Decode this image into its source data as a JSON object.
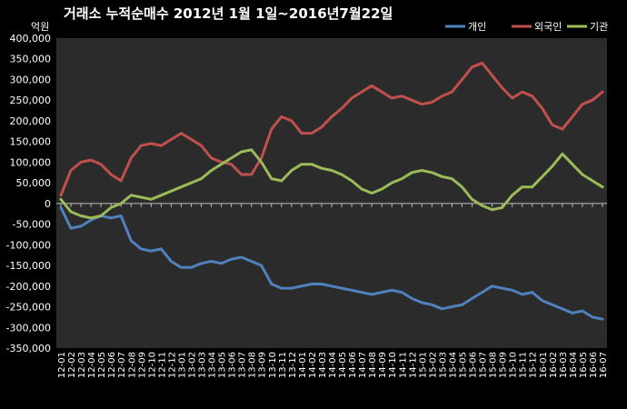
{
  "chart_data": {
    "type": "line",
    "title": "거래소 누적순매수 2012년 1월 1일~2016년7월22일",
    "unit_label": "억원",
    "ylim": [
      -350000,
      400000
    ],
    "y_ticks": [
      400000,
      350000,
      300000,
      250000,
      200000,
      150000,
      100000,
      50000,
      0,
      -50000,
      -100000,
      -150000,
      -200000,
      -250000,
      -300000,
      -350000
    ],
    "y_tick_labels": [
      "400,000",
      "350,000",
      "300,000",
      "250,000",
      "200,000",
      "150,000",
      "100,000",
      "50,000",
      "0",
      "-50,000",
      "-100,000",
      "-150,000",
      "-200,000",
      "-250,000",
      "-300,000",
      "-350,000"
    ],
    "categories": [
      "12-01",
      "12-02",
      "12-03",
      "12-04",
      "12-05",
      "12-06",
      "12-07",
      "12-08",
      "12-09",
      "12-10",
      "12-11",
      "12-12",
      "13-01",
      "13-02",
      "13-03",
      "13-04",
      "13-05",
      "13-06",
      "13-07",
      "13-08",
      "13-09",
      "13-10",
      "13-11",
      "13-12",
      "14-01",
      "14-02",
      "14-03",
      "14-04",
      "14-05",
      "14-06",
      "14-07",
      "14-08",
      "14-09",
      "14-10",
      "14-11",
      "14-12",
      "15-01",
      "15-02",
      "15-03",
      "15-04",
      "15-05",
      "15-06",
      "15-07",
      "15-08",
      "15-09",
      "15-10",
      "15-11",
      "15-12",
      "16-01",
      "16-02",
      "16-03",
      "16-04",
      "16-05",
      "16-06",
      "16-07"
    ],
    "grid": false,
    "legend_position": "top-right",
    "series": [
      {
        "name": "개인",
        "color": "#4f81bd",
        "values": [
          -10000,
          -60000,
          -55000,
          -40000,
          -30000,
          -35000,
          -30000,
          -90000,
          -110000,
          -115000,
          -110000,
          -140000,
          -155000,
          -155000,
          -145000,
          -140000,
          -145000,
          -135000,
          -130000,
          -140000,
          -150000,
          -195000,
          -205000,
          -205000,
          -200000,
          -195000,
          -195000,
          -200000,
          -205000,
          -210000,
          -215000,
          -220000,
          -215000,
          -210000,
          -215000,
          -230000,
          -240000,
          -245000,
          -255000,
          -250000,
          -245000,
          -230000,
          -215000,
          -200000,
          -205000,
          -210000,
          -220000,
          -215000,
          -235000,
          -245000,
          -255000,
          -265000,
          -260000,
          -275000,
          -280000
        ]
      },
      {
        "name": "외국인",
        "color": "#c0504d",
        "values": [
          20000,
          80000,
          100000,
          105000,
          95000,
          70000,
          55000,
          110000,
          140000,
          145000,
          140000,
          155000,
          170000,
          155000,
          140000,
          110000,
          100000,
          95000,
          70000,
          70000,
          110000,
          180000,
          210000,
          200000,
          170000,
          170000,
          185000,
          210000,
          230000,
          255000,
          270000,
          285000,
          270000,
          255000,
          260000,
          250000,
          240000,
          245000,
          260000,
          270000,
          300000,
          330000,
          340000,
          310000,
          280000,
          255000,
          270000,
          260000,
          230000,
          190000,
          180000,
          210000,
          240000,
          250000,
          270000
        ]
      },
      {
        "name": "기관",
        "color": "#9bbb59",
        "values": [
          10000,
          -20000,
          -30000,
          -35000,
          -30000,
          -10000,
          0,
          20000,
          15000,
          10000,
          20000,
          30000,
          40000,
          50000,
          60000,
          80000,
          95000,
          110000,
          125000,
          130000,
          100000,
          60000,
          55000,
          80000,
          95000,
          95000,
          85000,
          80000,
          70000,
          55000,
          35000,
          25000,
          35000,
          50000,
          60000,
          75000,
          80000,
          75000,
          65000,
          60000,
          40000,
          10000,
          -5000,
          -15000,
          -10000,
          20000,
          40000,
          40000,
          65000,
          90000,
          120000,
          95000,
          70000,
          55000,
          40000
        ]
      }
    ]
  }
}
